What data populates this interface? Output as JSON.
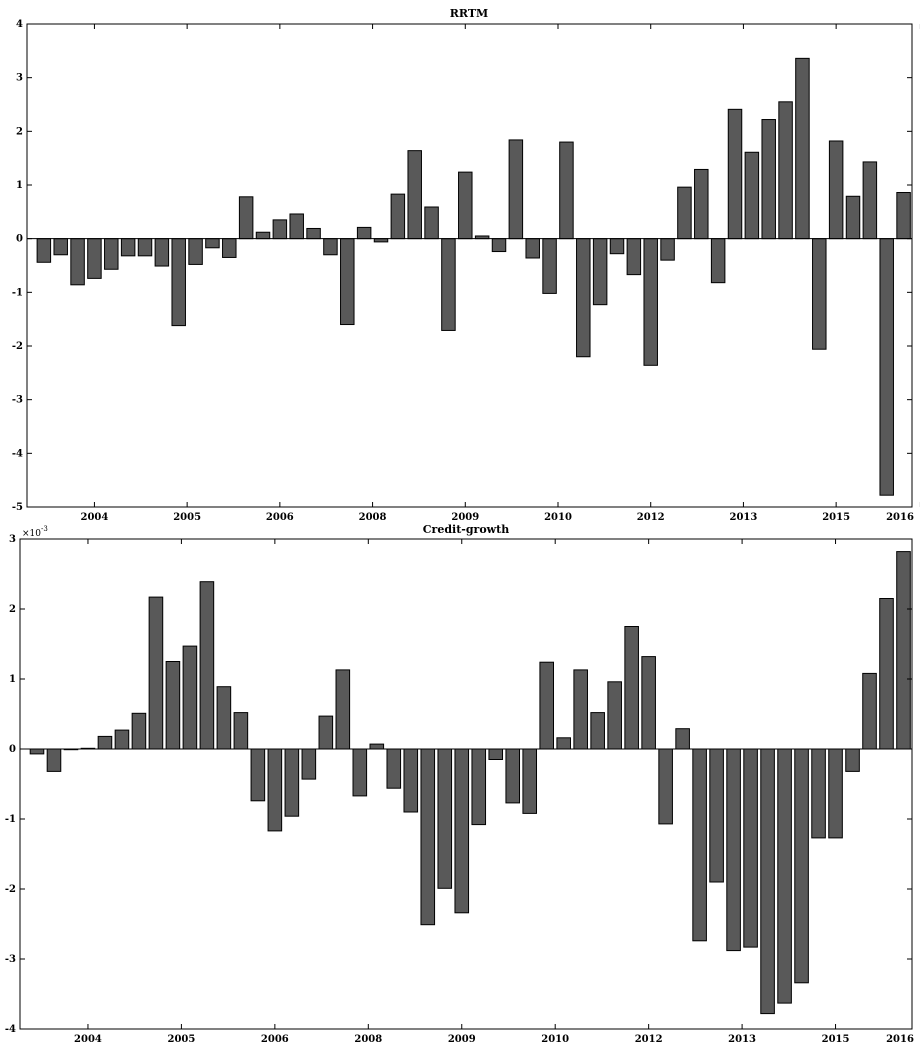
{
  "chart_data": [
    {
      "type": "bar",
      "title": "RRTM",
      "ylim": [
        -5,
        4
      ],
      "yticks": [
        "-5",
        "-4",
        "-3",
        "-2",
        "-1",
        "0",
        "1",
        "2",
        "3",
        "4"
      ],
      "y_exponent": "",
      "xtick_labels": [
        "2004",
        "2005",
        "2006",
        "2008",
        "2009",
        "2010",
        "2012",
        "2013",
        "2015",
        "2016"
      ],
      "xtick_positions": [
        4,
        9.5,
        15,
        20.5,
        26,
        31.5,
        37,
        42.5,
        48,
        53
      ],
      "grid": false,
      "values": [
        -0.44,
        -0.3,
        -0.86,
        -0.74,
        -0.57,
        -0.32,
        -0.32,
        -0.51,
        -1.62,
        -0.48,
        -0.17,
        -0.35,
        0.78,
        0.12,
        0.35,
        0.46,
        0.19,
        -0.3,
        -1.6,
        0.21,
        -0.06,
        0.83,
        1.64,
        0.59,
        -1.71,
        1.24,
        0.05,
        -0.24,
        1.84,
        -0.36,
        -1.02,
        1.8,
        -2.2,
        -1.23,
        -0.28,
        -0.67,
        -2.36,
        -0.4,
        0.96,
        1.29,
        -0.82,
        2.41,
        1.61,
        2.22,
        2.55,
        3.36,
        -2.06,
        1.82,
        0.79,
        1.43,
        -4.78,
        0.86
      ]
    },
    {
      "type": "bar",
      "title": "Credit-growth",
      "ylim": [
        -4,
        3
      ],
      "yticks": [
        "-4",
        "-3",
        "-2",
        "-1",
        "0",
        "1",
        "2",
        "3"
      ],
      "y_exponent": "×10",
      "y_exponent_power": "-3",
      "xtick_labels": [
        "2004",
        "2005",
        "2006",
        "2008",
        "2009",
        "2010",
        "2012",
        "2013",
        "2015",
        "2016"
      ],
      "xtick_positions": [
        4,
        9.5,
        15,
        20.5,
        26,
        31.5,
        37,
        42.5,
        48,
        53
      ],
      "grid": false,
      "values": [
        -0.07,
        -0.32,
        -0.01,
        0.01,
        0.18,
        0.27,
        0.51,
        2.17,
        1.25,
        1.47,
        2.39,
        0.89,
        0.52,
        -0.74,
        -1.17,
        -0.96,
        -0.43,
        0.47,
        1.13,
        -0.67,
        0.07,
        -0.56,
        -0.9,
        -2.51,
        -1.99,
        -2.34,
        -1.08,
        -0.15,
        -0.77,
        -0.92,
        1.24,
        0.16,
        1.13,
        0.52,
        0.96,
        1.75,
        1.32,
        -1.07,
        0.29,
        -2.74,
        -1.9,
        -2.88,
        -2.83,
        -3.78,
        -3.63,
        -3.34,
        -1.27,
        -1.27,
        -0.32,
        1.08,
        2.15,
        2.82
      ]
    }
  ]
}
